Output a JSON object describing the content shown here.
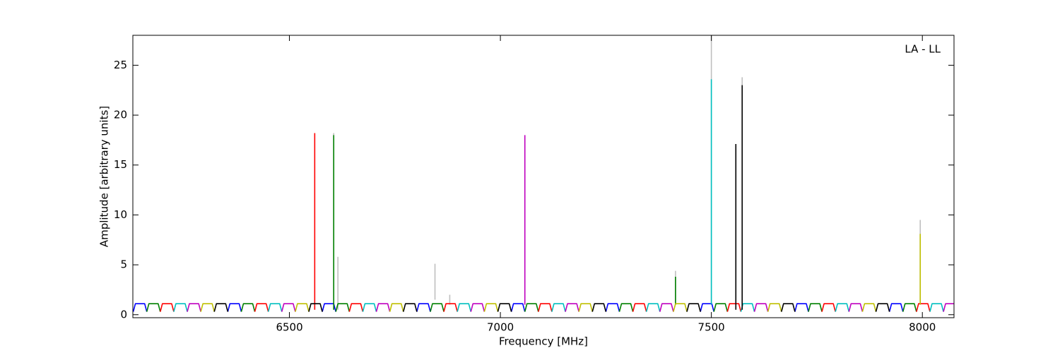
{
  "chart_data": {
    "type": "line",
    "xlabel": "Frequency [MHz]",
    "ylabel": "Amplitude [arbitrary units]",
    "annotation": "LA - LL",
    "xlim": [
      6129,
      8075
    ],
    "ylim": [
      -0.3,
      28
    ],
    "xticks": [
      6500,
      7000,
      7500,
      8000
    ],
    "yticks": [
      0,
      5,
      10,
      15,
      20,
      25
    ],
    "series": [
      {
        "color": "#bfbfbf",
        "x": [
          6605,
          6605,
          null,
          6615,
          6615,
          null,
          6845,
          6845,
          null,
          6880,
          6880,
          null,
          7415,
          7415,
          null,
          7500,
          7500,
          null,
          7573,
          7573,
          null,
          7995,
          7995
        ],
        "values": [
          0.5,
          18.2,
          null,
          0.5,
          5.8,
          null,
          1.5,
          5.1,
          null,
          1,
          2,
          null,
          1,
          4.4,
          null,
          1,
          28,
          null,
          1,
          23.8,
          null,
          1,
          9.5
        ]
      },
      {
        "color": "#0000ff",
        "x": [
          6130,
          6135,
          6157,
          6162,
          null,
          6354,
          6359,
          6381,
          6386,
          null,
          6578,
          6583,
          6605,
          6610,
          null,
          6802,
          6807,
          6829,
          6834,
          null,
          7026,
          7031,
          7053,
          7058,
          null,
          7250,
          7255,
          7277,
          7282,
          null,
          7474,
          7479,
          7501,
          7506,
          null,
          7698,
          7703,
          7725,
          7730,
          null,
          7922,
          7927,
          7949,
          7954
        ],
        "values": [
          0.3,
          1.1,
          1.1,
          0.3,
          null,
          0.3,
          1.1,
          1.1,
          0.3,
          null,
          0.3,
          1.1,
          1.1,
          0.3,
          null,
          0.3,
          1.1,
          1.1,
          0.3,
          null,
          0.3,
          1.1,
          1.1,
          0.3,
          null,
          0.3,
          1.1,
          1.1,
          0.3,
          null,
          0.3,
          1.1,
          1.1,
          0.3,
          null,
          0.3,
          1.1,
          1.1,
          0.3,
          null,
          0.3,
          1.1,
          1.1,
          0.3
        ]
      },
      {
        "color": "#008000",
        "x": [
          6162,
          6167,
          6189,
          6194,
          null,
          6386,
          6391,
          6413,
          6418,
          null,
          6610,
          6615,
          6637,
          6642,
          null,
          6834,
          6839,
          6861,
          6866,
          null,
          7058,
          7063,
          7085,
          7090,
          null,
          7282,
          7287,
          7309,
          7314,
          null,
          7506,
          7511,
          7533,
          7538,
          null,
          7730,
          7735,
          7757,
          7762,
          null,
          7954,
          7959,
          7981,
          7986,
          null,
          6605,
          6605,
          null,
          7415,
          7415
        ],
        "values": [
          0.3,
          1.1,
          1.1,
          0.3,
          null,
          0.3,
          1.1,
          1.1,
          0.3,
          null,
          0.3,
          1.1,
          1.1,
          0.3,
          null,
          0.3,
          1.1,
          1.1,
          0.3,
          null,
          0.3,
          1.1,
          1.1,
          0.3,
          null,
          0.3,
          1.1,
          1.1,
          0.3,
          null,
          0.3,
          1.1,
          1.1,
          0.3,
          null,
          0.3,
          1.1,
          1.1,
          0.3,
          null,
          0.3,
          1.1,
          1.1,
          0.3,
          null,
          0.5,
          18,
          null,
          1,
          3.8
        ]
      },
      {
        "color": "#ff0000",
        "x": [
          6194,
          6199,
          6221,
          6226,
          null,
          6418,
          6423,
          6445,
          6450,
          null,
          6642,
          6647,
          6669,
          6674,
          null,
          6866,
          6871,
          6893,
          6898,
          null,
          7090,
          7095,
          7117,
          7122,
          null,
          7314,
          7319,
          7341,
          7346,
          null,
          7538,
          7543,
          7565,
          7570,
          null,
          7762,
          7767,
          7789,
          7794,
          null,
          7986,
          7991,
          8013,
          8018,
          null,
          6560,
          6560
        ],
        "values": [
          0.3,
          1.1,
          1.1,
          0.3,
          null,
          0.3,
          1.1,
          1.1,
          0.3,
          null,
          0.3,
          1.1,
          1.1,
          0.3,
          null,
          0.3,
          1.1,
          1.1,
          0.3,
          null,
          0.3,
          1.1,
          1.1,
          0.3,
          null,
          0.3,
          1.1,
          1.1,
          0.3,
          null,
          0.3,
          1.1,
          1.1,
          0.3,
          null,
          0.3,
          1.1,
          1.1,
          0.3,
          null,
          0.3,
          1.1,
          1.1,
          0.3,
          null,
          0.5,
          18.2
        ]
      },
      {
        "color": "#00bfbf",
        "x": [
          6226,
          6231,
          6253,
          6258,
          null,
          6450,
          6455,
          6477,
          6482,
          null,
          6674,
          6679,
          6701,
          6706,
          null,
          6898,
          6903,
          6925,
          6930,
          null,
          7122,
          7127,
          7149,
          7154,
          null,
          7346,
          7351,
          7373,
          7378,
          null,
          7570,
          7575,
          7597,
          7602,
          null,
          7794,
          7799,
          7821,
          7826,
          null,
          8018,
          8023,
          8045,
          8050,
          null,
          7500,
          7500
        ],
        "values": [
          0.3,
          1.1,
          1.1,
          0.3,
          null,
          0.3,
          1.1,
          1.1,
          0.3,
          null,
          0.3,
          1.1,
          1.1,
          0.3,
          null,
          0.3,
          1.1,
          1.1,
          0.3,
          null,
          0.3,
          1.1,
          1.1,
          0.3,
          null,
          0.3,
          1.1,
          1.1,
          0.3,
          null,
          0.3,
          1.1,
          1.1,
          0.3,
          null,
          0.3,
          1.1,
          1.1,
          0.3,
          null,
          0.3,
          1.1,
          1.1,
          0.3,
          null,
          1,
          23.6
        ]
      },
      {
        "color": "#bf00bf",
        "x": [
          6258,
          6263,
          6285,
          6290,
          null,
          6482,
          6487,
          6509,
          6514,
          null,
          6706,
          6711,
          6733,
          6738,
          null,
          6930,
          6935,
          6957,
          6962,
          null,
          7154,
          7159,
          7181,
          7186,
          null,
          7378,
          7383,
          7405,
          7410,
          null,
          7602,
          7607,
          7629,
          7634,
          null,
          7826,
          7831,
          7853,
          7858,
          null,
          8050,
          8055,
          8077,
          8082,
          null,
          7058,
          7058
        ],
        "values": [
          0.3,
          1.1,
          1.1,
          0.3,
          null,
          0.3,
          1.1,
          1.1,
          0.3,
          null,
          0.3,
          1.1,
          1.1,
          0.3,
          null,
          0.3,
          1.1,
          1.1,
          0.3,
          null,
          0.3,
          1.1,
          1.1,
          0.3,
          null,
          0.3,
          1.1,
          1.1,
          0.3,
          null,
          0.3,
          1.1,
          1.1,
          0.3,
          null,
          0.3,
          1.1,
          1.1,
          0.3,
          null,
          0.3,
          1.1,
          1.1,
          0.3,
          null,
          1,
          18
        ]
      },
      {
        "color": "#bfbf00",
        "x": [
          6290,
          6295,
          6317,
          6322,
          null,
          6514,
          6519,
          6541,
          6546,
          null,
          6738,
          6743,
          6765,
          6770,
          null,
          6962,
          6967,
          6989,
          6994,
          null,
          7186,
          7191,
          7213,
          7218,
          null,
          7410,
          7415,
          7437,
          7442,
          null,
          7634,
          7639,
          7661,
          7666,
          null,
          7858,
          7863,
          7885,
          7890,
          null,
          7995,
          7995
        ],
        "values": [
          0.3,
          1.1,
          1.1,
          0.3,
          null,
          0.3,
          1.1,
          1.1,
          0.3,
          null,
          0.3,
          1.1,
          1.1,
          0.3,
          null,
          0.3,
          1.1,
          1.1,
          0.3,
          null,
          0.3,
          1.1,
          1.1,
          0.3,
          null,
          0.3,
          1.1,
          1.1,
          0.3,
          null,
          0.3,
          1.1,
          1.1,
          0.3,
          null,
          0.3,
          1.1,
          1.1,
          0.3,
          null,
          1,
          8.1
        ]
      },
      {
        "color": "#000000",
        "x": [
          6322,
          6327,
          6349,
          6354,
          null,
          6546,
          6551,
          6573,
          6578,
          null,
          6770,
          6775,
          6797,
          6802,
          null,
          6994,
          6999,
          7021,
          7026,
          null,
          7218,
          7223,
          7245,
          7250,
          null,
          7442,
          7447,
          7469,
          7474,
          null,
          7666,
          7671,
          7693,
          7698,
          null,
          7890,
          7895,
          7917,
          7922,
          null,
          7558,
          7558,
          null,
          7573,
          7573
        ],
        "values": [
          0.3,
          1.1,
          1.1,
          0.3,
          null,
          0.3,
          1.1,
          1.1,
          0.3,
          null,
          0.3,
          1.1,
          1.1,
          0.3,
          null,
          0.3,
          1.1,
          1.1,
          0.3,
          null,
          0.3,
          1.1,
          1.1,
          0.3,
          null,
          0.3,
          1.1,
          1.1,
          0.3,
          null,
          0.3,
          1.1,
          1.1,
          0.3,
          null,
          0.3,
          1.1,
          1.1,
          0.3,
          null,
          0.5,
          17.1,
          null,
          0.5,
          23
        ]
      }
    ]
  }
}
